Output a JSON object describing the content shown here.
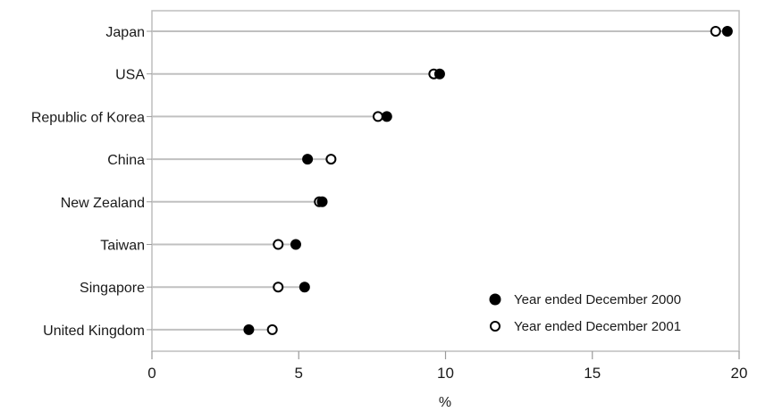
{
  "chart_data": {
    "type": "scatter",
    "orientation": "horizontal-dot-plot",
    "categories": [
      "Japan",
      "USA",
      "Republic of Korea",
      "China",
      "New Zealand",
      "Taiwan",
      "Singapore",
      "United Kingdom"
    ],
    "series": [
      {
        "name": "Year ended December 2000",
        "marker": "filled-circle",
        "color": "#000000",
        "values": [
          19.6,
          9.8,
          8.0,
          5.3,
          5.8,
          4.9,
          5.2,
          3.3
        ]
      },
      {
        "name": "Year ended December 2001",
        "marker": "open-circle",
        "color": "#000000",
        "values": [
          19.2,
          9.6,
          7.7,
          6.1,
          5.7,
          4.3,
          4.3,
          4.1
        ]
      }
    ],
    "xlabel": "%",
    "ylabel": "",
    "xlim": [
      0,
      20
    ],
    "xticks": [
      0,
      5,
      10,
      15,
      20
    ],
    "grid": false,
    "legend_position": "bottom-right",
    "connector_color": "#c0c0c0",
    "frame_color": "#bdbdbd"
  }
}
